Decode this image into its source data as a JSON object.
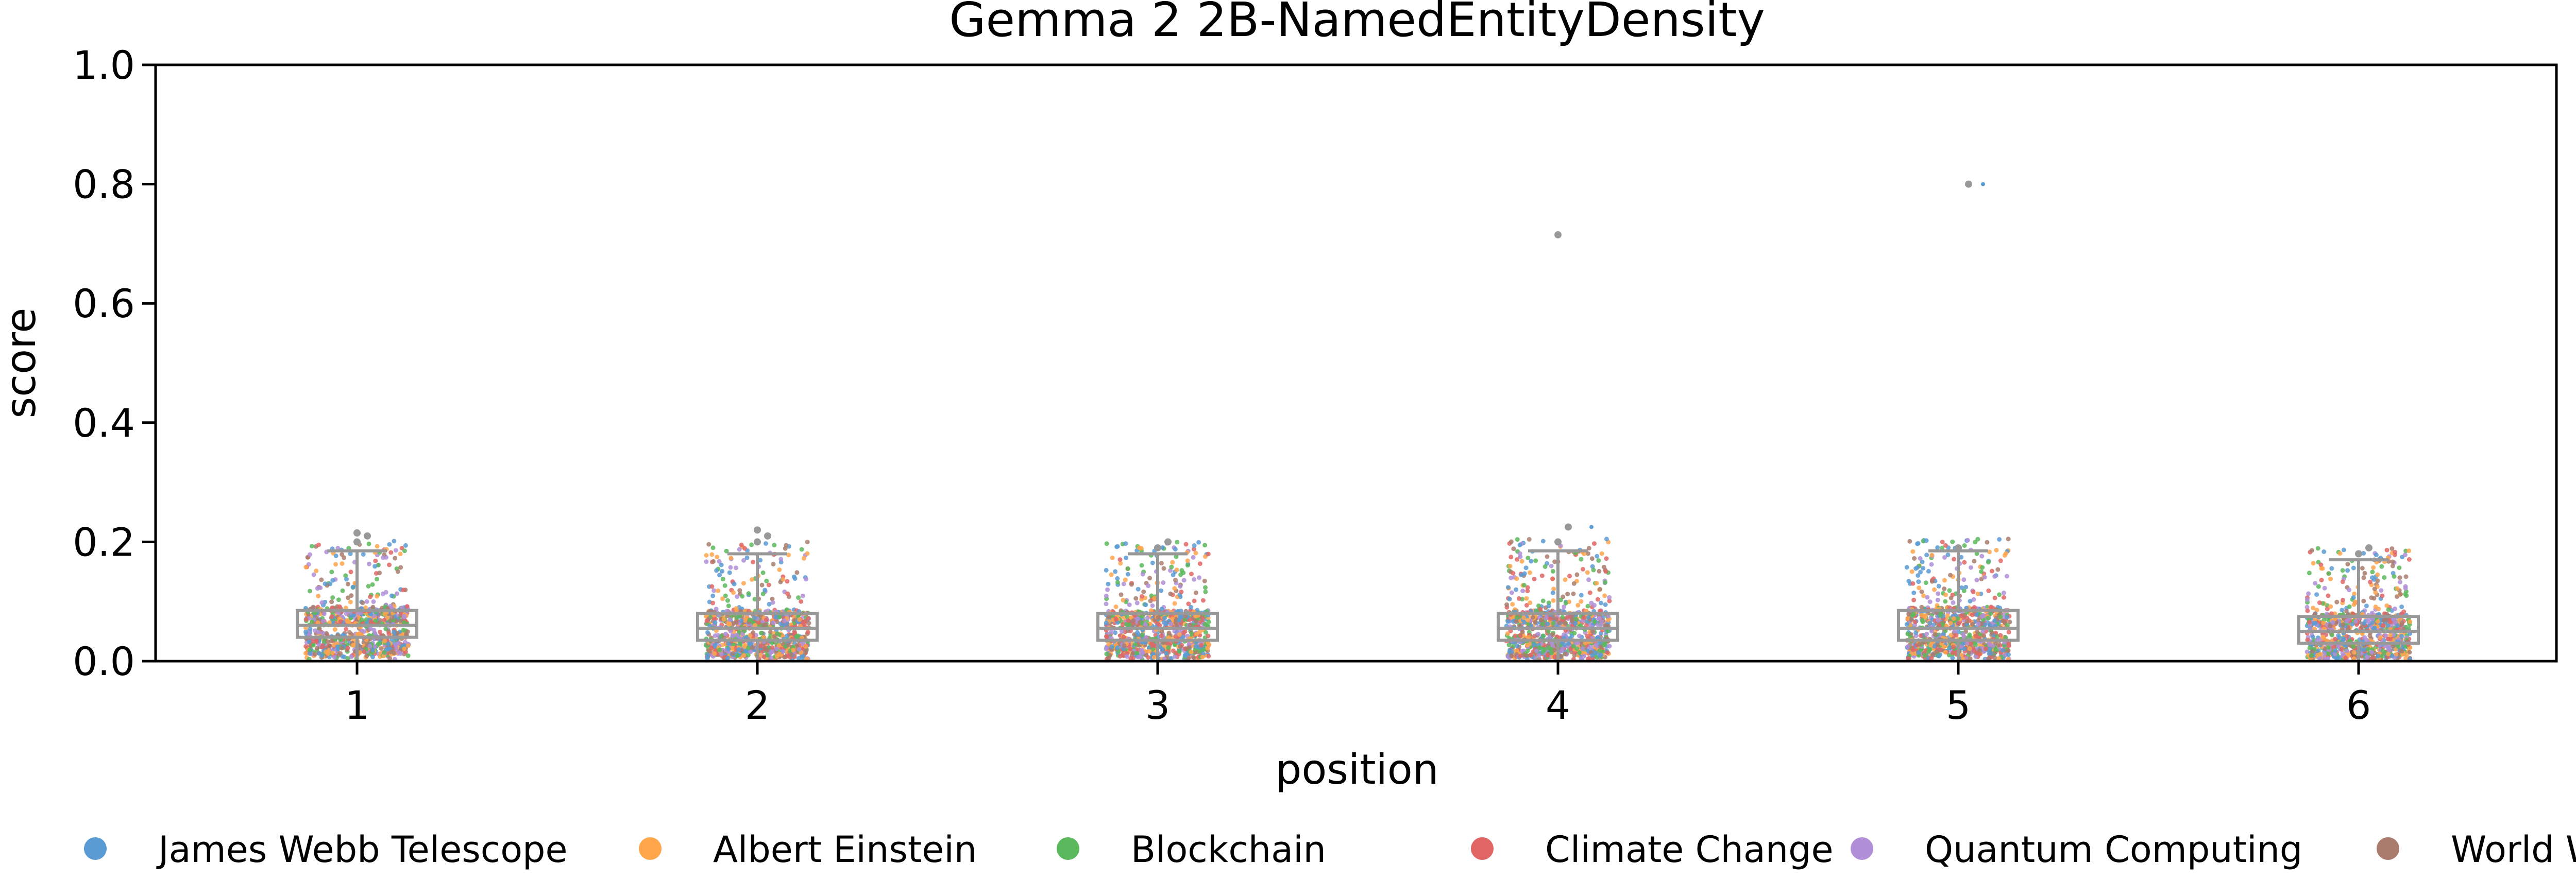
{
  "chart_data": {
    "type": "box-strip",
    "title": "Gemma 2 2B-NamedEntityDensity",
    "xlabel": "position",
    "ylabel": "score",
    "ylim": [
      0,
      1.0
    ],
    "yticks": [
      "0.0",
      "0.2",
      "0.4",
      "0.6",
      "0.8",
      "1.0"
    ],
    "categories": [
      "1",
      "2",
      "3",
      "4",
      "5",
      "6"
    ],
    "grid": false,
    "legend_position": "bottom",
    "boxes": [
      {
        "position": "1",
        "whisker_low": 0.0,
        "q1": 0.04,
        "median": 0.06,
        "q3": 0.085,
        "whisker_high": 0.185
      },
      {
        "position": "2",
        "whisker_low": 0.0,
        "q1": 0.035,
        "median": 0.055,
        "q3": 0.08,
        "whisker_high": 0.18
      },
      {
        "position": "3",
        "whisker_low": 0.0,
        "q1": 0.035,
        "median": 0.055,
        "q3": 0.08,
        "whisker_high": 0.18
      },
      {
        "position": "4",
        "whisker_low": 0.0,
        "q1": 0.035,
        "median": 0.055,
        "q3": 0.08,
        "whisker_high": 0.185
      },
      {
        "position": "5",
        "whisker_low": 0.0,
        "q1": 0.035,
        "median": 0.055,
        "q3": 0.085,
        "whisker_high": 0.185
      },
      {
        "position": "6",
        "whisker_low": 0.0,
        "q1": 0.03,
        "median": 0.05,
        "q3": 0.075,
        "whisker_high": 0.17
      }
    ],
    "outliers": [
      {
        "position": "1",
        "values": [
          0.2,
          0.21,
          0.215
        ]
      },
      {
        "position": "2",
        "values": [
          0.2,
          0.21,
          0.22
        ]
      },
      {
        "position": "3",
        "values": [
          0.19,
          0.2
        ]
      },
      {
        "position": "4",
        "values": [
          0.2,
          0.225,
          0.715
        ]
      },
      {
        "position": "5",
        "values": [
          0.19,
          0.8
        ]
      },
      {
        "position": "6",
        "values": [
          0.18,
          0.19
        ]
      }
    ],
    "series": [
      {
        "name": "James Webb Telescope",
        "color": "#5a9bd4"
      },
      {
        "name": "Albert Einstein",
        "color": "#ffa64d"
      },
      {
        "name": "Blockchain",
        "color": "#5cb85c"
      },
      {
        "name": "Climate Change",
        "color": "#e06666"
      },
      {
        "name": "Quantum Computing",
        "color": "#b08fd8"
      },
      {
        "name": "World War II",
        "color": "#a97c6d"
      }
    ],
    "box_color": "#999999"
  }
}
